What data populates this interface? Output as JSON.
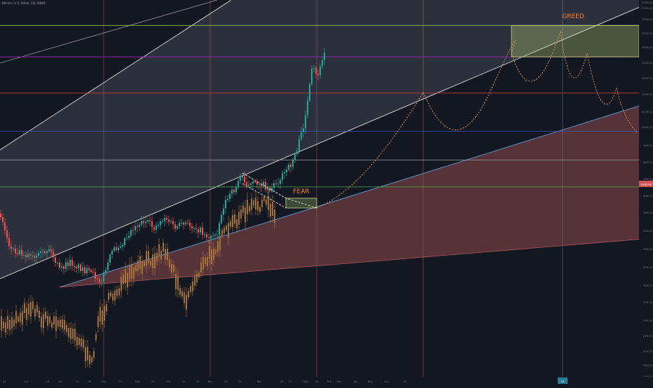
{
  "chart_data": {
    "type": "candlestick",
    "title": "Bitcoin / U.S. Dollar, 1D, INDEX",
    "scale": "log",
    "y_axis_side": "right",
    "x_ticks": [
      "24",
      "Jun",
      "14",
      "Jul",
      "13",
      "20",
      "Aug",
      "17",
      "Sep",
      "14",
      "Oct",
      "12",
      "19",
      "Nov",
      "16",
      "23",
      "Dec",
      "14",
      "21",
      "2021",
      "18",
      "Feb",
      "Mar",
      "Apr",
      "May",
      "Jun",
      "Jul"
    ],
    "y_ticks": [
      "23000.00",
      "21000.00",
      "19000.00",
      "17000.00",
      "16000.00",
      "14000.00",
      "13000.00",
      "12000.00",
      "11000.00",
      "10000.00",
      "9000.00",
      "8000.00",
      "7000.00",
      "6000.00",
      "5000.00",
      "4500.00",
      "4000.00",
      "3500.00",
      "3000.00",
      "2700.00",
      "2400.00",
      "2200.00",
      "2000.00",
      "1800.00",
      "1600.00"
    ],
    "y_unit": "USD",
    "price_label": "6,963.68",
    "horizontal_levels": [
      {
        "value": 19500,
        "color": "#8bc34a"
      },
      {
        "value": 15500,
        "color": "#9c27b0"
      },
      {
        "value": 11900,
        "color": "#e53935"
      },
      {
        "value": 9000,
        "color": "#3f51b5"
      },
      {
        "value": 7300,
        "color": "#9e9e9e"
      },
      {
        "value": 6000,
        "color": "#4caf50"
      }
    ],
    "annotations": [
      {
        "text": "GREED",
        "color": "#ff7f2a"
      },
      {
        "text": "FEAR",
        "color": "#ff7f2a"
      }
    ],
    "time_marker": "16",
    "colors": {
      "up": "#26a69a",
      "down": "#ef5350",
      "ghost": "#b07a3c",
      "background": "#131722"
    }
  }
}
